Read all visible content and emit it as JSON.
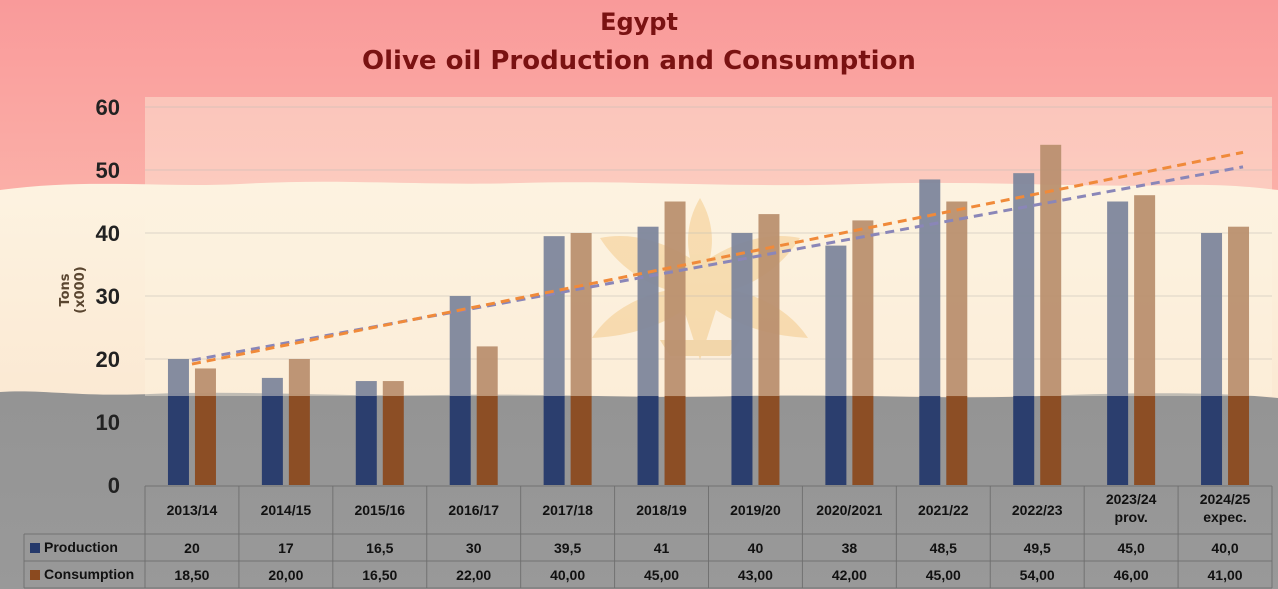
{
  "chart_data": {
    "type": "bar",
    "title": "Egypt",
    "subtitle": "Olive oil Production and Consumption",
    "ylabel": "Tons (x000)",
    "xlabel": "",
    "ylim": [
      0,
      60
    ],
    "yticks": [
      0,
      10,
      20,
      30,
      40,
      50,
      60
    ],
    "grid": true,
    "legend": "data-table-left",
    "categories": [
      [
        "2013/14"
      ],
      [
        "2014/15"
      ],
      [
        "2015/16"
      ],
      [
        "2016/17"
      ],
      [
        "2017/18"
      ],
      [
        "2018/19"
      ],
      [
        "2019/20"
      ],
      [
        "2020/2021"
      ],
      [
        "2021/22"
      ],
      [
        "2022/23"
      ],
      [
        "2023/24",
        "prov."
      ],
      [
        "2024/25",
        "expec."
      ]
    ],
    "series": [
      {
        "name": "Production",
        "color": "#25396b",
        "values": [
          20,
          17,
          16.5,
          30,
          39.5,
          41,
          40,
          38,
          48.5,
          49.5,
          45.0,
          40.0
        ],
        "labels": [
          "20",
          "17",
          "16,5",
          "30",
          "39,5",
          "41",
          "40",
          "38",
          "48,5",
          "49,5",
          "45,0",
          "40,0"
        ]
      },
      {
        "name": "Consumption",
        "color": "#8b4a1f",
        "values": [
          18.5,
          20.0,
          16.5,
          22.0,
          40.0,
          45.0,
          43.0,
          42.0,
          45.0,
          54.0,
          46.0,
          41.0
        ],
        "labels": [
          "18,50",
          "20,00",
          "16,50",
          "22,00",
          "40,00",
          "45,00",
          "43,00",
          "42,00",
          "45,00",
          "54,00",
          "46,00",
          "41,00"
        ]
      }
    ],
    "trendlines": [
      {
        "series": "Production",
        "from": [
          1,
          19.8
        ],
        "to": [
          12,
          50.5
        ],
        "color": "#8a86b8"
      },
      {
        "series": "Consumption",
        "from": [
          1,
          19.2
        ],
        "to": [
          12,
          52.8
        ],
        "color": "#f08a3a"
      }
    ],
    "background": {
      "top": "#f8a0a0",
      "middle": "#fdf2e0",
      "bottom": "#8c8c8c"
    }
  }
}
